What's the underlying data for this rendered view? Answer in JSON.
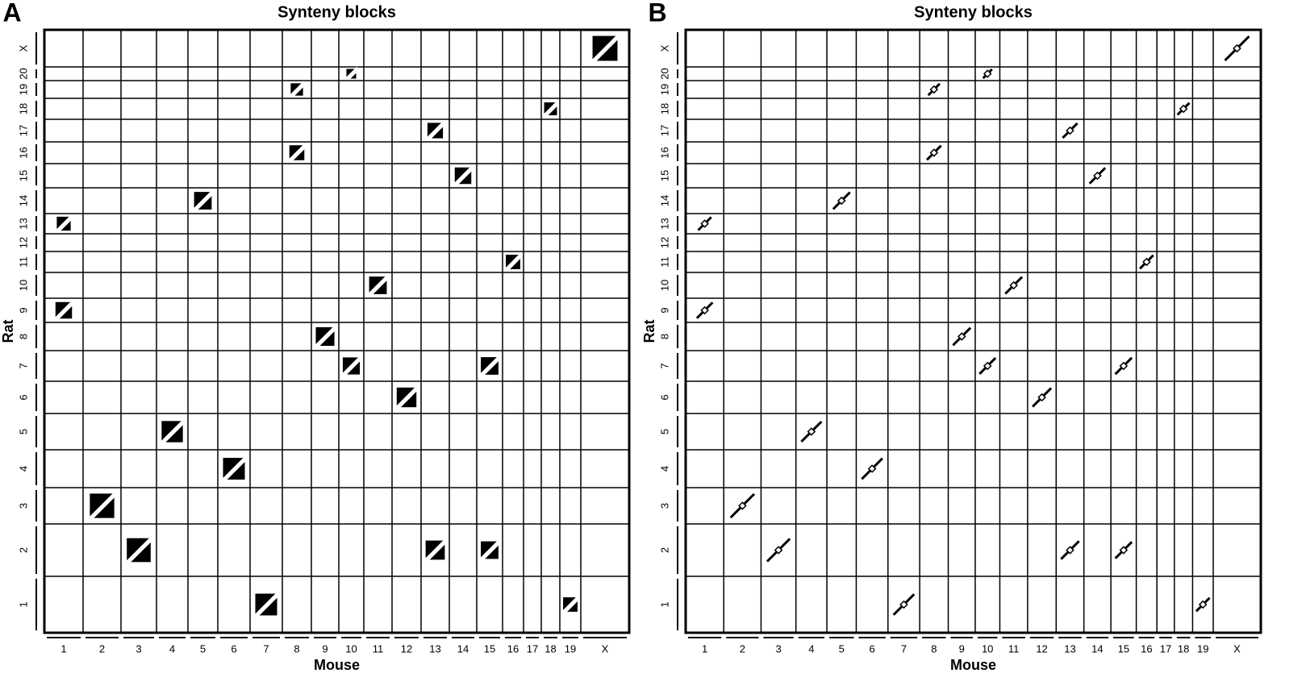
{
  "panels": [
    {
      "label": "A",
      "title": "Synteny blocks",
      "x_axis_label": "Mouse",
      "y_axis_label": "Rat",
      "x_categories": [
        "1",
        "2",
        "3",
        "4",
        "5",
        "6",
        "7",
        "8",
        "9",
        "10",
        "11",
        "12",
        "13",
        "14",
        "15",
        "16",
        "17",
        "18",
        "19",
        "X"
      ],
      "y_categories": [
        "1",
        "2",
        "3",
        "4",
        "5",
        "6",
        "7",
        "8",
        "9",
        "10",
        "11",
        "12",
        "13",
        "14",
        "15",
        "16",
        "17",
        "18",
        "19",
        "20",
        "X"
      ]
    },
    {
      "label": "B",
      "title": "Synteny blocks",
      "x_axis_label": "Mouse",
      "y_axis_label": "Rat",
      "x_categories": [
        "1",
        "2",
        "3",
        "4",
        "5",
        "6",
        "7",
        "8",
        "9",
        "10",
        "11",
        "12",
        "13",
        "14",
        "15",
        "16",
        "17",
        "18",
        "19",
        "X"
      ],
      "y_categories": [
        "1",
        "2",
        "3",
        "4",
        "5",
        "6",
        "7",
        "8",
        "9",
        "10",
        "11",
        "12",
        "13",
        "14",
        "15",
        "16",
        "17",
        "18",
        "19",
        "20",
        "X"
      ]
    }
  ]
}
